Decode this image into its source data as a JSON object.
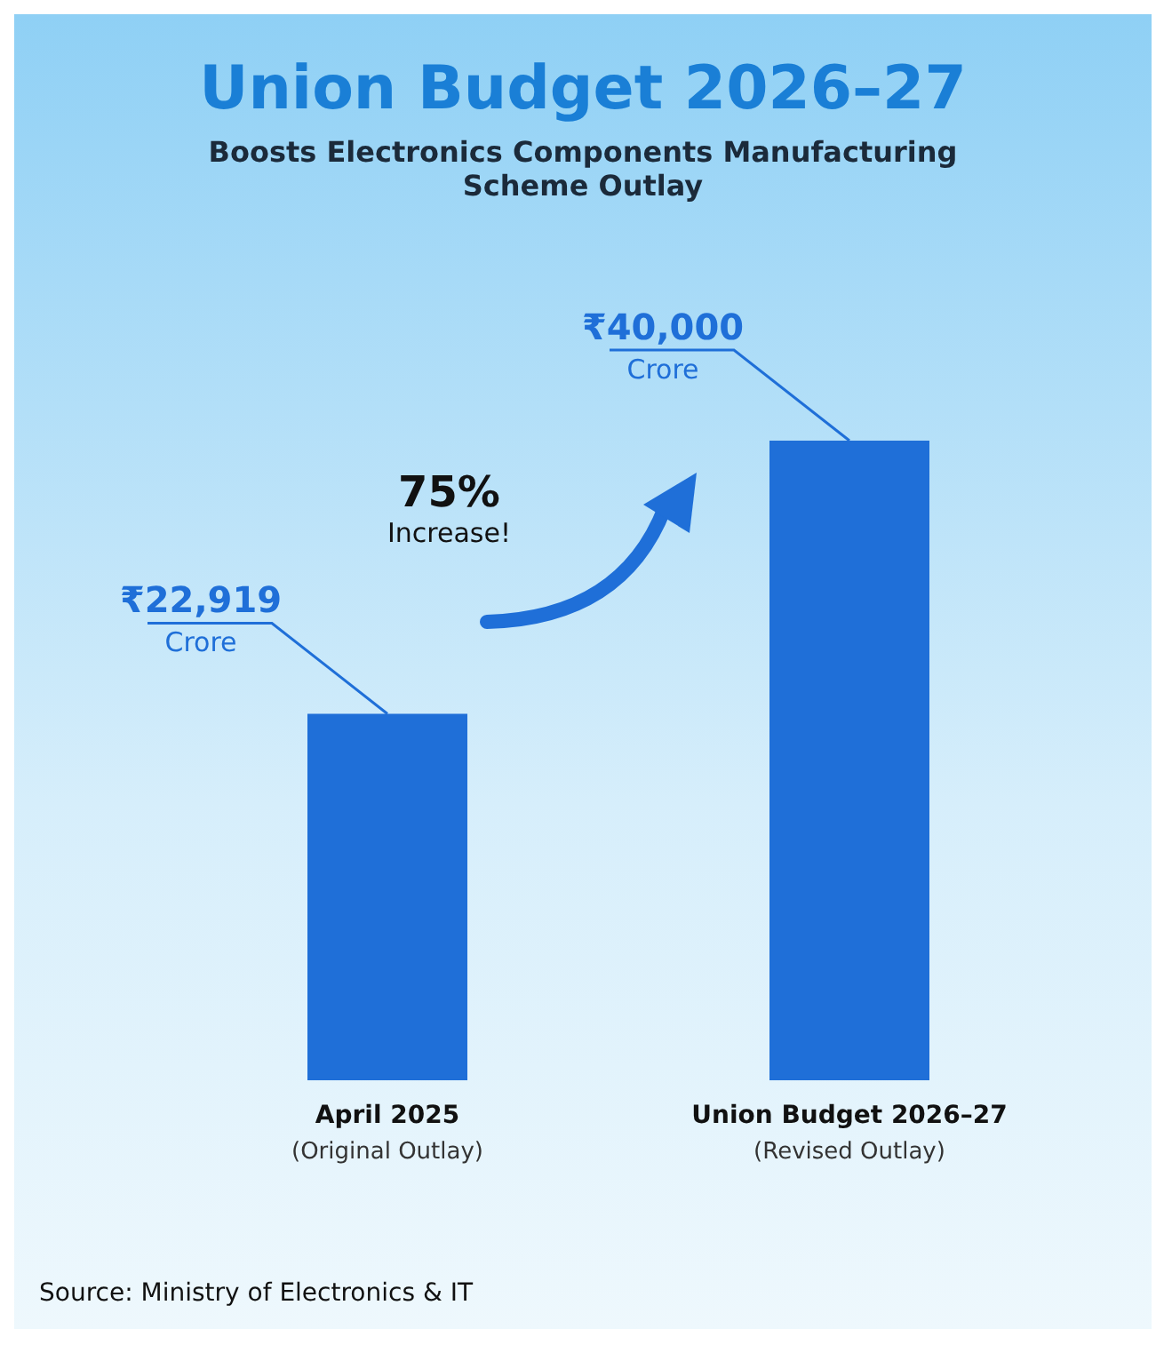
{
  "chart_data": {
    "type": "bar",
    "title": "Union Budget 2026–27",
    "subtitle": "Boosts Electronics Components Manufacturing\nScheme Outlay",
    "categories": [
      "April 2025\n(Original Outlay)",
      "Union Budget 2026–27\n(Revised Outlay)"
    ],
    "values": [
      22919,
      40000
    ],
    "color": "#1f6fd8",
    "value_labels": [
      "₹22,919\nCrore",
      "₹40,000\nCrore"
    ],
    "annotations": [
      "75%\nIncrease!",
      "Source: Ministry of Electronics & IT"
    ]
  }
}
